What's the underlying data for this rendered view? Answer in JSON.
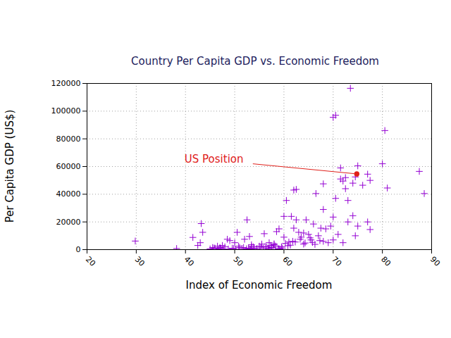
{
  "chart_data": {
    "type": "scatter",
    "title": "Country Per Capita GDP vs. Economic Freedom",
    "x_label": "Index of Economic Freedom",
    "y_label": "Per Capita GDP (US$)",
    "color": "#9400d3",
    "marker": "plus",
    "grid": true,
    "xlim": [
      20,
      90
    ],
    "xticks": [
      20,
      30,
      40,
      50,
      60,
      70,
      80,
      90
    ],
    "ylim": [
      0,
      120000
    ],
    "yticks": [
      0,
      20000,
      40000,
      60000,
      80000,
      100000,
      120000
    ],
    "x": [
      29.8,
      38.2,
      41.5,
      42.5,
      43.2,
      43.5,
      43.0,
      45.0,
      45.5,
      46.0,
      46.5,
      47.0,
      47.5,
      48.0,
      48.5,
      49.0,
      49.5,
      50.0,
      50.5,
      51.0,
      51.5,
      52.0,
      52.5,
      53.0,
      53.5,
      53.0,
      54.0,
      55.0,
      55.5,
      56.0,
      56.5,
      57.0,
      57.0,
      57.5,
      58.0,
      58.5,
      59.0,
      59.5,
      60.0,
      60.0,
      60.5,
      61.0,
      61.5,
      62.0,
      62.0,
      62.5,
      62.5,
      63.0,
      63.5,
      64.0,
      64.0,
      64.5,
      65.0,
      65.5,
      66.0,
      66.5,
      67.0,
      67.5,
      68.0,
      68.0,
      68.0,
      68.5,
      69.0,
      69.5,
      70.0,
      70.5,
      70.0,
      70.5,
      70.0,
      71.0,
      71.5,
      71.5,
      72.0,
      72.0,
      72.5,
      72.5,
      73.0,
      73.0,
      73.5,
      74.0,
      74.0,
      74.5,
      74.5,
      75.0,
      75.0,
      76.0,
      77.0,
      77.0,
      77.5,
      77.5,
      80.0,
      80.5,
      81.0,
      87.5,
      88.5,
      45.8,
      46.8,
      47.8,
      49.8,
      50.8,
      51.8,
      52.4,
      52.8,
      53.4,
      53.8,
      54.5,
      55.3,
      56.2,
      56.8,
      57.3,
      57.8,
      58.3,
      58.8,
      59.2,
      59.7,
      60.3,
      60.8,
      61.3,
      61.8,
      62.3,
      63.3,
      64.3,
      65.3,
      65.8,
      66.3,
      67.3,
      58.0,
      59.0,
      53.2,
      55.8,
      50.2,
      48.7,
      47.2
    ],
    "values": [
      6200,
      800,
      8800,
      3000,
      18800,
      12500,
      5000,
      500,
      1500,
      1000,
      2500,
      1500,
      3000,
      2000,
      7500,
      6500,
      1000,
      5000,
      12500,
      1500,
      800,
      7500,
      21500,
      9500,
      2000,
      500,
      1000,
      2500,
      4000,
      11500,
      2000,
      5000,
      800,
      1500,
      3500,
      13000,
      15000,
      2000,
      9000,
      24000,
      35500,
      5500,
      24000,
      15500,
      43000,
      43500,
      21500,
      12500,
      9000,
      4000,
      12000,
      21500,
      11000,
      7000,
      18500,
      40500,
      10000,
      15500,
      47500,
      29000,
      6000,
      15000,
      5000,
      17000,
      95500,
      97000,
      23500,
      37000,
      7000,
      11000,
      51000,
      59000,
      49500,
      5000,
      44000,
      52000,
      20000,
      35500,
      116500,
      48000,
      24500,
      52500,
      10000,
      60500,
      17000,
      46500,
      54500,
      20000,
      14500,
      50000,
      62000,
      86000,
      44500,
      56500,
      40500,
      1200,
      500,
      300,
      800,
      2500,
      1500,
      600,
      1000,
      3500,
      2000,
      700,
      1800,
      2200,
      900,
      3000,
      1400,
      2600,
      600,
      400,
      1100,
      4500,
      2800,
      3200,
      6000,
      5500,
      7500,
      4800,
      8500,
      5200,
      3800,
      6500,
      4200,
      600,
      300,
      1000,
      200,
      400,
      800
    ],
    "annotations": [
      {
        "text": "US Position",
        "x": 74.8,
        "y": 54600,
        "color": "#e0201a"
      }
    ]
  }
}
